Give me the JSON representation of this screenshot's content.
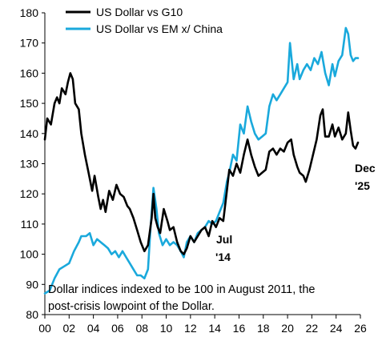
{
  "chart_data": {
    "type": "line",
    "x_ticks": [
      "00",
      "02",
      "04",
      "06",
      "08",
      "10",
      "12",
      "14",
      "16",
      "18",
      "20",
      "22",
      "24",
      "26"
    ],
    "y_ticks": [
      80,
      90,
      100,
      110,
      120,
      130,
      140,
      150,
      160,
      170,
      180
    ],
    "ylim": [
      80,
      180
    ],
    "xlim": [
      2000,
      2026
    ],
    "grid": false,
    "legend_position": "top",
    "series": [
      {
        "name": "US Dollar vs G10",
        "color": "#000000",
        "points": [
          [
            2000.0,
            138
          ],
          [
            2000.2,
            145
          ],
          [
            2000.5,
            143
          ],
          [
            2000.8,
            150
          ],
          [
            2001.0,
            152
          ],
          [
            2001.2,
            150
          ],
          [
            2001.4,
            155
          ],
          [
            2001.7,
            153
          ],
          [
            2001.9,
            157
          ],
          [
            2002.1,
            160
          ],
          [
            2002.3,
            158
          ],
          [
            2002.5,
            150
          ],
          [
            2002.8,
            148
          ],
          [
            2003.0,
            140
          ],
          [
            2003.3,
            133
          ],
          [
            2003.6,
            127
          ],
          [
            2003.9,
            121
          ],
          [
            2004.1,
            126
          ],
          [
            2004.4,
            119
          ],
          [
            2004.6,
            115
          ],
          [
            2004.8,
            118
          ],
          [
            2005.0,
            114
          ],
          [
            2005.3,
            121
          ],
          [
            2005.6,
            118
          ],
          [
            2005.9,
            123
          ],
          [
            2006.2,
            120
          ],
          [
            2006.5,
            119
          ],
          [
            2006.8,
            116
          ],
          [
            2007.0,
            115
          ],
          [
            2007.3,
            112
          ],
          [
            2007.6,
            108
          ],
          [
            2007.9,
            104
          ],
          [
            2008.2,
            101
          ],
          [
            2008.5,
            103
          ],
          [
            2008.8,
            112
          ],
          [
            2008.95,
            120
          ],
          [
            2009.1,
            112
          ],
          [
            2009.3,
            109
          ],
          [
            2009.5,
            107
          ],
          [
            2009.8,
            115
          ],
          [
            2010.1,
            111
          ],
          [
            2010.3,
            108
          ],
          [
            2010.6,
            109
          ],
          [
            2010.9,
            104
          ],
          [
            2011.2,
            101
          ],
          [
            2011.45,
            100
          ],
          [
            2011.7,
            102
          ],
          [
            2012.0,
            106
          ],
          [
            2012.3,
            104
          ],
          [
            2012.6,
            106
          ],
          [
            2012.9,
            108
          ],
          [
            2013.2,
            109
          ],
          [
            2013.5,
            106
          ],
          [
            2013.8,
            111
          ],
          [
            2014.1,
            109
          ],
          [
            2014.4,
            112
          ],
          [
            2014.7,
            111
          ],
          [
            2015.0,
            121
          ],
          [
            2015.2,
            128
          ],
          [
            2015.5,
            126
          ],
          [
            2015.8,
            130
          ],
          [
            2016.1,
            127
          ],
          [
            2016.4,
            133
          ],
          [
            2016.7,
            138
          ],
          [
            2017.0,
            133
          ],
          [
            2017.3,
            129
          ],
          [
            2017.6,
            126
          ],
          [
            2017.9,
            127
          ],
          [
            2018.2,
            128
          ],
          [
            2018.5,
            134
          ],
          [
            2018.8,
            135
          ],
          [
            2019.1,
            133
          ],
          [
            2019.4,
            135
          ],
          [
            2019.7,
            134
          ],
          [
            2020.0,
            137
          ],
          [
            2020.3,
            138
          ],
          [
            2020.5,
            133
          ],
          [
            2020.8,
            129
          ],
          [
            2021.0,
            127
          ],
          [
            2021.3,
            126
          ],
          [
            2021.5,
            124
          ],
          [
            2021.8,
            128
          ],
          [
            2022.1,
            133
          ],
          [
            2022.4,
            138
          ],
          [
            2022.7,
            146
          ],
          [
            2022.9,
            148
          ],
          [
            2023.1,
            139
          ],
          [
            2023.4,
            139
          ],
          [
            2023.7,
            143
          ],
          [
            2023.9,
            139
          ],
          [
            2024.2,
            142
          ],
          [
            2024.5,
            138
          ],
          [
            2024.8,
            140
          ],
          [
            2025.0,
            147
          ],
          [
            2025.2,
            141
          ],
          [
            2025.4,
            136
          ],
          [
            2025.6,
            135
          ],
          [
            2025.8,
            137
          ]
        ]
      },
      {
        "name": "US Dollar vs EM x/ China",
        "color": "#1aa9dc",
        "points": [
          [
            2000.0,
            87
          ],
          [
            2000.4,
            88
          ],
          [
            2000.8,
            92
          ],
          [
            2001.2,
            95
          ],
          [
            2001.6,
            96
          ],
          [
            2002.0,
            97
          ],
          [
            2002.4,
            101
          ],
          [
            2002.8,
            104
          ],
          [
            2003.0,
            106
          ],
          [
            2003.4,
            106
          ],
          [
            2003.7,
            107
          ],
          [
            2004.0,
            103
          ],
          [
            2004.3,
            105
          ],
          [
            2004.6,
            104
          ],
          [
            2004.9,
            103
          ],
          [
            2005.2,
            102
          ],
          [
            2005.5,
            100
          ],
          [
            2005.8,
            101
          ],
          [
            2006.1,
            99
          ],
          [
            2006.4,
            101
          ],
          [
            2006.7,
            99
          ],
          [
            2007.0,
            97
          ],
          [
            2007.3,
            95
          ],
          [
            2007.6,
            93
          ],
          [
            2007.9,
            93
          ],
          [
            2008.2,
            92
          ],
          [
            2008.5,
            95
          ],
          [
            2008.7,
            108
          ],
          [
            2008.95,
            122
          ],
          [
            2009.2,
            115
          ],
          [
            2009.4,
            107
          ],
          [
            2009.7,
            103
          ],
          [
            2010.0,
            105
          ],
          [
            2010.3,
            103
          ],
          [
            2010.6,
            104
          ],
          [
            2010.9,
            103
          ],
          [
            2011.2,
            101
          ],
          [
            2011.45,
            99
          ],
          [
            2011.7,
            104
          ],
          [
            2012.0,
            106
          ],
          [
            2012.3,
            104
          ],
          [
            2012.6,
            107
          ],
          [
            2012.9,
            108
          ],
          [
            2013.2,
            109
          ],
          [
            2013.5,
            111
          ],
          [
            2013.8,
            110
          ],
          [
            2014.1,
            111
          ],
          [
            2014.4,
            114
          ],
          [
            2014.7,
            117
          ],
          [
            2015.0,
            124
          ],
          [
            2015.2,
            127
          ],
          [
            2015.5,
            133
          ],
          [
            2015.8,
            131
          ],
          [
            2016.1,
            143
          ],
          [
            2016.4,
            140
          ],
          [
            2016.7,
            149
          ],
          [
            2017.0,
            144
          ],
          [
            2017.3,
            140
          ],
          [
            2017.6,
            138
          ],
          [
            2017.9,
            139
          ],
          [
            2018.2,
            140
          ],
          [
            2018.5,
            149
          ],
          [
            2018.8,
            153
          ],
          [
            2019.1,
            151
          ],
          [
            2019.4,
            153
          ],
          [
            2019.7,
            155
          ],
          [
            2020.0,
            157
          ],
          [
            2020.2,
            170
          ],
          [
            2020.5,
            158
          ],
          [
            2020.8,
            163
          ],
          [
            2021.0,
            158
          ],
          [
            2021.3,
            161
          ],
          [
            2021.6,
            163
          ],
          [
            2021.9,
            161
          ],
          [
            2022.2,
            165
          ],
          [
            2022.5,
            163
          ],
          [
            2022.8,
            167
          ],
          [
            2023.1,
            160
          ],
          [
            2023.4,
            156
          ],
          [
            2023.7,
            163
          ],
          [
            2023.9,
            159
          ],
          [
            2024.2,
            164
          ],
          [
            2024.5,
            166
          ],
          [
            2024.8,
            175
          ],
          [
            2025.0,
            173
          ],
          [
            2025.2,
            166
          ],
          [
            2025.4,
            164
          ],
          [
            2025.6,
            165
          ],
          [
            2025.8,
            165
          ]
        ]
      }
    ],
    "annotations": {
      "jul14_line1": "Jul",
      "jul14_line2": "'14",
      "dec25_line1": "Dec",
      "dec25_line2": "'25",
      "note_line1": "Dollar indices indexed to be 100 in August 2011, the",
      "note_line2": "post-crisis lowpoint of the Dollar."
    }
  }
}
